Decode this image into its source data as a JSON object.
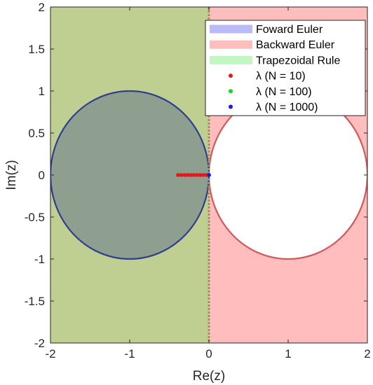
{
  "chart_data": {
    "type": "scatter",
    "xlabel": "Re(z)",
    "ylabel": "Im(z)",
    "xlim": [
      -2,
      2
    ],
    "ylim": [
      -2,
      2
    ],
    "xticks": [
      "-2",
      "-1",
      "0",
      "1",
      "2"
    ],
    "yticks": [
      "2",
      "1.5",
      "1",
      "0.5",
      "0",
      "-0.5",
      "-1",
      "-1.5",
      "-2"
    ],
    "legend_position": "top-right",
    "regions": [
      {
        "name": "Foward Euler",
        "shape": "disk",
        "center": [
          -1,
          0
        ],
        "radius": 1,
        "fill": "#8c8cd9",
        "edge": "#2e3f8f"
      },
      {
        "name": "Backward Euler",
        "shape": "exterior of disk",
        "center": [
          1,
          0
        ],
        "radius": 1,
        "fill": "#ffbdbd",
        "edge": "#d05a5a"
      },
      {
        "name": "Trapezoidal Rule",
        "shape": "half-plane Re(z) <= 0",
        "fill": "#bfcf91",
        "edge": "#a09060"
      }
    ],
    "legend": [
      {
        "label": "Foward Euler",
        "kind": "patch",
        "color": "#babaf7"
      },
      {
        "label": "Backward Euler",
        "kind": "patch",
        "color": "#ffbdbd"
      },
      {
        "label": "Trapezoidal Rule",
        "kind": "patch",
        "color": "#c2f7c2"
      },
      {
        "label": "λ (N = 10)",
        "kind": "marker",
        "color": "#e41a1a"
      },
      {
        "label": "λ (N = 100)",
        "kind": "marker",
        "color": "#1ad41a"
      },
      {
        "label": "λ (N = 1000)",
        "kind": "marker",
        "color": "#1a1ae4"
      }
    ],
    "series": [
      {
        "name": "λ (N = 10)",
        "color": "#e41a1a",
        "x": [
          -0.39,
          -0.35,
          -0.31,
          -0.27,
          -0.23,
          -0.19,
          -0.15,
          -0.11,
          -0.07,
          -0.03
        ],
        "y": [
          0,
          0,
          0,
          0,
          0,
          0,
          0,
          0,
          0,
          0
        ]
      },
      {
        "name": "λ (N = 100)",
        "color": "#1ad41a",
        "x": [
          -0.004,
          -0.003,
          -0.002,
          -0.001
        ],
        "y": [
          0,
          0,
          0,
          0
        ]
      },
      {
        "name": "λ (N = 1000)",
        "color": "#1a1ae4",
        "x": [
          -0.0004,
          -0.0002
        ],
        "y": [
          0,
          0
        ]
      }
    ]
  }
}
